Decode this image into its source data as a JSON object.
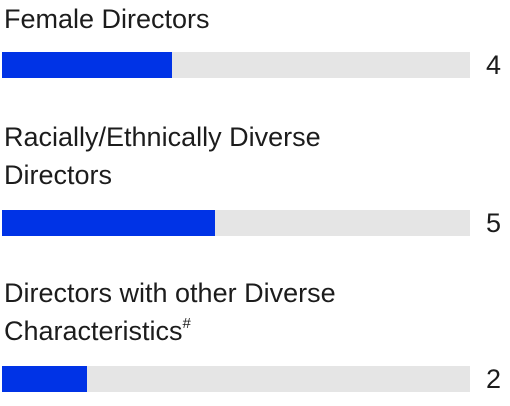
{
  "chart_data": {
    "type": "bar",
    "orientation": "horizontal",
    "categories": [
      "Female Directors",
      "Racially/Ethnically Diverse Directors",
      "Directors with other Diverse Characteristics"
    ],
    "footnote_markers": [
      null,
      null,
      "#"
    ],
    "values": [
      4,
      5,
      2
    ],
    "xlim": [
      0,
      11
    ],
    "color": "#0033e6",
    "track_color": "#e5e5e5"
  }
}
